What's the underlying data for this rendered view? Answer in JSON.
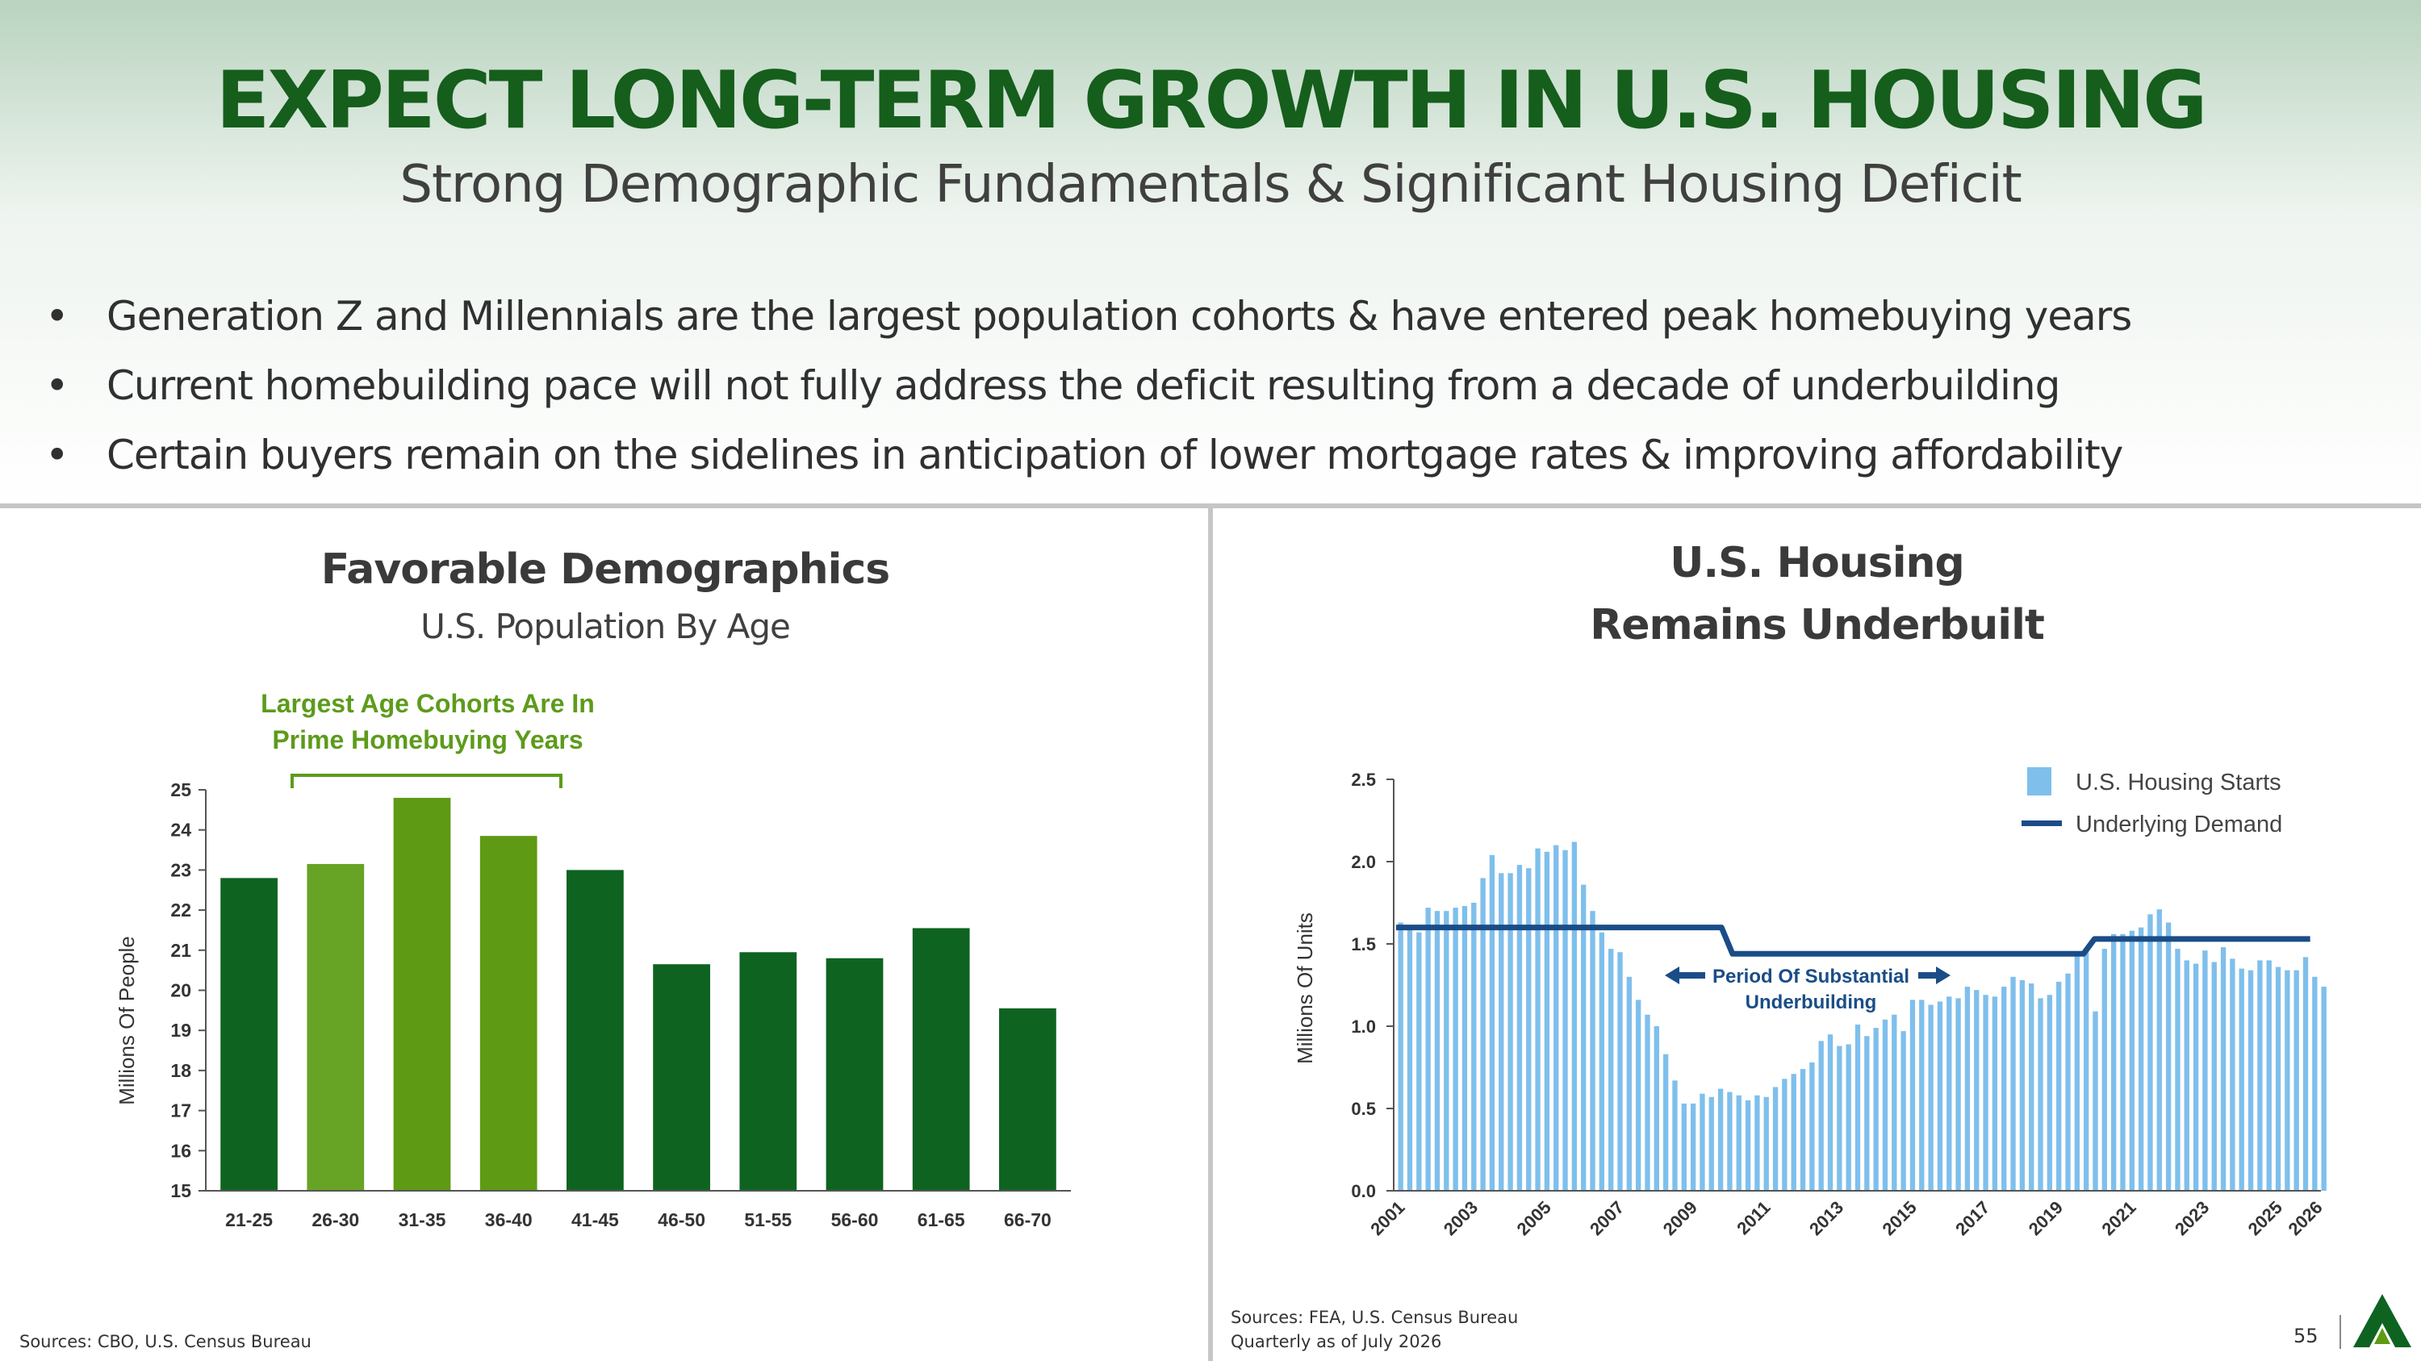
{
  "header": {
    "title": "EXPECT LONG-TERM GROWTH IN U.S. HOUSING",
    "subtitle": "Strong Demographic Fundamentals & Significant Housing Deficit"
  },
  "bullets": [
    "Generation Z and Millennials are the largest population cohorts & have entered peak homebuying years",
    "Current homebuilding pace will not fully address the deficit resulting from a decade of underbuilding",
    "Certain buyers remain on the sidelines in anticipation of lower mortgage rates & improving affordability"
  ],
  "bullet_glyph": "•",
  "left_panel": {
    "title": "Favorable Demographics",
    "subtitle": "U.S. Population By Age",
    "annotation_line1": "Largest Age Cohorts Are In",
    "annotation_line2": "Prime Homebuying Years",
    "source": "Sources: CBO, U.S. Census Bureau"
  },
  "right_panel": {
    "title_line1": "U.S. Housing",
    "title_line2": "Remains Underbuilt",
    "annotation_line1": "Period Of Substantial",
    "annotation_line2": "Underbuilding",
    "source_line1": "Sources: FEA, U.S. Census Bureau",
    "source_line2": "Quarterly as of July 2026"
  },
  "footer": {
    "page_number": "55"
  },
  "colors": {
    "dark_green": "#0e6321",
    "light_green": "#67a325",
    "olive_green": "#5e9a14",
    "annotation_green": "#5d9b1c",
    "title_green": "#155e1c",
    "starts_blue": "#7fbfec",
    "demand_navy": "#1a4d87"
  },
  "chart_data": [
    {
      "type": "bar",
      "title": "",
      "xlabel": "",
      "ylabel": "Millions Of People",
      "ylim": [
        15,
        25
      ],
      "yticks": [
        "15",
        "16",
        "17",
        "18",
        "19",
        "20",
        "21",
        "22",
        "23",
        "24",
        "25"
      ],
      "categories": [
        "21-25",
        "26-30",
        "31-35",
        "36-40",
        "41-45",
        "46-50",
        "51-55",
        "56-60",
        "61-65",
        "66-70"
      ],
      "values": [
        22.8,
        23.15,
        24.8,
        23.85,
        23.0,
        20.65,
        20.95,
        20.8,
        21.55,
        19.55
      ],
      "bar_colors": [
        "#0e6321",
        "#67a325",
        "#5e9a14",
        "#5e9a14",
        "#0e6321",
        "#0e6321",
        "#0e6321",
        "#0e6321",
        "#0e6321",
        "#0e6321"
      ]
    },
    {
      "type": "bar",
      "title": "",
      "xlabel": "",
      "ylabel": "Millions Of Units",
      "ylim": [
        0,
        2.5
      ],
      "yticks": [
        "0.0",
        "0.5",
        "1.0",
        "1.5",
        "2.0",
        "2.5"
      ],
      "xticks": [
        "2001",
        "2003",
        "2005",
        "2007",
        "2009",
        "2011",
        "2013",
        "2015",
        "2017",
        "2019",
        "2021",
        "2023",
        "2025",
        "2026"
      ],
      "legend": "top-right",
      "series": [
        {
          "name": "U.S. Housing Starts",
          "kind": "bar",
          "x_start": "2001 Q1",
          "frequency": "quarterly",
          "values": [
            1.63,
            1.6,
            1.57,
            1.72,
            1.7,
            1.7,
            1.72,
            1.73,
            1.75,
            1.9,
            2.04,
            1.93,
            1.93,
            1.98,
            1.96,
            2.08,
            2.06,
            2.1,
            2.07,
            2.12,
            1.86,
            1.7,
            1.57,
            1.47,
            1.45,
            1.3,
            1.16,
            1.07,
            1.0,
            0.83,
            0.67,
            0.53,
            0.53,
            0.59,
            0.57,
            0.62,
            0.6,
            0.58,
            0.55,
            0.58,
            0.57,
            0.63,
            0.68,
            0.71,
            0.74,
            0.78,
            0.91,
            0.95,
            0.88,
            0.89,
            1.01,
            0.94,
            0.99,
            1.04,
            1.07,
            0.97,
            1.16,
            1.16,
            1.13,
            1.15,
            1.18,
            1.17,
            1.24,
            1.22,
            1.19,
            1.18,
            1.24,
            1.3,
            1.28,
            1.26,
            1.17,
            1.19,
            1.27,
            1.32,
            1.44,
            1.47,
            1.09,
            1.47,
            1.56,
            1.56,
            1.58,
            1.6,
            1.68,
            1.71,
            1.63,
            1.47,
            1.4,
            1.38,
            1.46,
            1.39,
            1.48,
            1.41,
            1.35,
            1.34,
            1.4,
            1.4,
            1.36,
            1.34,
            1.34,
            1.42,
            1.3,
            1.24
          ]
        },
        {
          "name": "Underlying Demand",
          "kind": "step-line",
          "segments": [
            {
              "from": 2001.0,
              "to": 2009.9,
              "value": 1.6
            },
            {
              "from": 2010.2,
              "to": 2019.8,
              "value": 1.44
            },
            {
              "from": 2020.1,
              "to": 2026.0,
              "value": 1.53
            }
          ]
        }
      ]
    }
  ]
}
